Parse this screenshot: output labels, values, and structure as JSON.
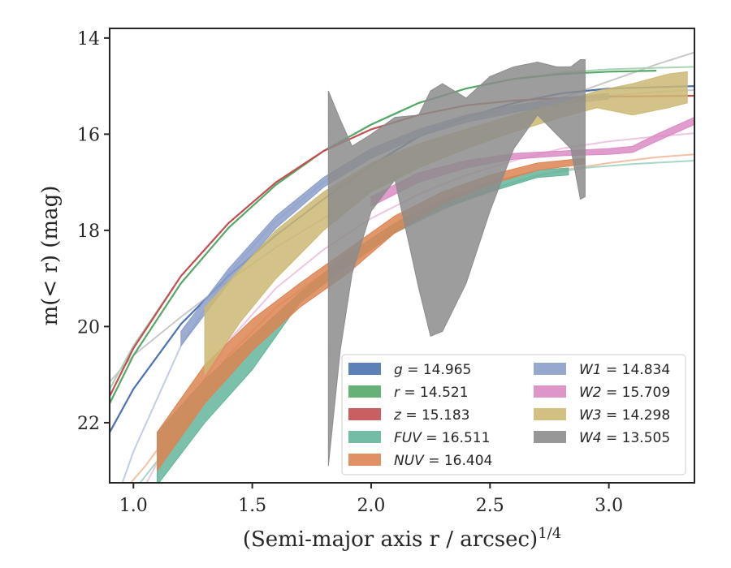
{
  "chart_data": {
    "type": "line",
    "title": "",
    "xlabel": "(Semi-major axis r / arcsec)",
    "xlabel_superscript": "1/4",
    "ylabel": "m(< r) (mag)",
    "xlim": [
      0.9,
      3.36
    ],
    "ylim": [
      23.25,
      13.8
    ],
    "y_inverted": true,
    "grid": false,
    "legend_position": "bottom-right",
    "x_ticks": [
      1.0,
      1.5,
      2.0,
      2.5,
      3.0
    ],
    "x_tick_labels": [
      "1.0",
      "1.5",
      "2.0",
      "2.5",
      "3.0"
    ],
    "y_ticks": [
      14,
      16,
      18,
      20,
      22
    ],
    "y_tick_labels": [
      "14",
      "16",
      "18",
      "20",
      "22"
    ],
    "series": [
      {
        "name": "g = 14.965",
        "band": "g",
        "total": "14.965",
        "color": "#4c72b0",
        "kind": "line",
        "x": [
          0.9,
          1.0,
          1.2,
          1.4,
          1.6,
          1.8,
          2.0,
          2.2,
          2.4,
          2.6,
          2.8,
          3.0,
          3.36
        ],
        "y": [
          22.2,
          21.3,
          19.95,
          18.95,
          18.1,
          17.35,
          16.65,
          16.05,
          15.65,
          15.35,
          15.15,
          15.05,
          15.0
        ]
      },
      {
        "name": "r = 14.521",
        "band": "r",
        "total": "14.521",
        "color": "#55a868",
        "kind": "line",
        "x": [
          0.9,
          1.0,
          1.2,
          1.4,
          1.6,
          1.8,
          2.0,
          2.2,
          2.4,
          2.6,
          2.8,
          3.0,
          3.2
        ],
        "y": [
          21.6,
          20.6,
          19.1,
          17.95,
          17.05,
          16.35,
          15.8,
          15.35,
          15.05,
          14.85,
          14.75,
          14.7,
          14.68
        ]
      },
      {
        "name": "z = 15.183",
        "band": "z",
        "total": "15.183",
        "color": "#c44e52",
        "kind": "line",
        "x": [
          0.9,
          1.0,
          1.2,
          1.4,
          1.6,
          1.8,
          2.0,
          2.2,
          2.4,
          2.6,
          2.8,
          3.0,
          3.36
        ],
        "y": [
          21.45,
          20.45,
          18.95,
          17.85,
          17.0,
          16.35,
          15.9,
          15.6,
          15.4,
          15.3,
          15.25,
          15.22,
          15.2
        ]
      },
      {
        "name": "FUV = 16.511",
        "band": "FUV",
        "total": "16.511",
        "color": "#64b59b",
        "kind": "band",
        "x": [
          1.1,
          1.3,
          1.5,
          1.7,
          1.9,
          2.1,
          2.3,
          2.5,
          2.7,
          2.83
        ],
        "y_low": [
          22.2,
          21.1,
          20.2,
          19.3,
          18.5,
          17.85,
          17.35,
          17.0,
          16.75,
          16.7
        ],
        "y_high": [
          23.3,
          22.0,
          20.9,
          19.5,
          18.75,
          18.05,
          17.55,
          17.2,
          16.9,
          16.85
        ]
      },
      {
        "name": "NUV = 16.404",
        "band": "NUV",
        "total": "16.404",
        "color": "#dd8452",
        "kind": "band",
        "x": [
          1.1,
          1.3,
          1.5,
          1.7,
          1.9,
          2.1,
          2.3,
          2.5,
          2.7,
          2.9
        ],
        "y_low": [
          22.2,
          20.8,
          19.85,
          19.1,
          18.4,
          17.7,
          17.2,
          16.85,
          16.6,
          16.5
        ],
        "y_high": [
          23.0,
          21.6,
          20.5,
          19.6,
          18.9,
          18.05,
          17.45,
          17.05,
          16.75,
          16.62
        ]
      },
      {
        "name": "W1 = 14.834",
        "band": "W1",
        "total": "14.834",
        "color": "#8c9fca",
        "kind": "band",
        "x": [
          1.2,
          1.4,
          1.6,
          1.8,
          2.0,
          2.2,
          2.4,
          2.6,
          2.8,
          3.0
        ],
        "y_low": [
          20.1,
          18.8,
          17.7,
          16.9,
          16.3,
          15.9,
          15.6,
          15.4,
          15.25,
          15.15
        ],
        "y_high": [
          20.4,
          19.1,
          17.95,
          17.1,
          16.5,
          16.05,
          15.75,
          15.55,
          15.38,
          15.27
        ]
      },
      {
        "name": "W2 = 15.709",
        "band": "W2",
        "total": "15.709",
        "color": "#da8bc3",
        "kind": "band",
        "x": [
          2.0,
          2.2,
          2.4,
          2.6,
          2.8,
          3.0,
          3.1,
          3.2,
          3.36
        ],
        "y_low": [
          17.3,
          16.8,
          16.55,
          16.4,
          16.35,
          16.3,
          16.25,
          16.0,
          15.65
        ],
        "y_high": [
          17.5,
          17.0,
          16.7,
          16.52,
          16.45,
          16.42,
          16.38,
          16.15,
          15.8
        ]
      },
      {
        "name": "W3 = 14.298",
        "band": "W3",
        "total": "14.298",
        "color": "#ccb974",
        "kind": "band",
        "x": [
          1.3,
          1.45,
          1.6,
          1.8,
          2.0,
          2.2,
          2.4,
          2.6,
          2.8,
          2.95,
          3.1,
          3.25,
          3.33
        ],
        "y_low": [
          19.6,
          18.8,
          18.0,
          17.2,
          16.6,
          16.2,
          15.9,
          15.6,
          15.35,
          15.1,
          14.95,
          14.75,
          14.7
        ],
        "y_high": [
          21.0,
          19.9,
          19.0,
          18.0,
          17.2,
          16.7,
          16.3,
          15.95,
          15.65,
          15.45,
          15.6,
          15.45,
          15.35
        ]
      },
      {
        "name": "W4 = 13.505",
        "band": "W4",
        "total": "13.505",
        "color": "#8c8c8c",
        "kind": "band",
        "x": [
          1.82,
          1.87,
          1.92,
          2.0,
          2.1,
          2.2,
          2.25,
          2.3,
          2.4,
          2.5,
          2.6,
          2.7,
          2.78,
          2.84,
          2.88,
          2.9
        ],
        "y_low": [
          15.1,
          15.7,
          16.25,
          16.0,
          15.65,
          15.6,
          15.1,
          14.95,
          15.25,
          14.8,
          14.6,
          14.5,
          14.6,
          14.6,
          14.45,
          14.45
        ],
        "y_high": [
          22.9,
          20.5,
          18.9,
          17.6,
          16.95,
          19.2,
          20.2,
          20.1,
          19.1,
          17.6,
          16.3,
          15.6,
          16.0,
          16.3,
          17.35,
          17.3
        ]
      }
    ],
    "model_curves": [
      {
        "band": "W4",
        "color": "#c8c8c8",
        "x": [
          0.9,
          1.0,
          1.2,
          1.4,
          1.6,
          1.8,
          2.0,
          2.2,
          2.4,
          2.6,
          2.8,
          3.0,
          3.2,
          3.36
        ],
        "y": [
          21.15,
          20.6,
          19.8,
          19.05,
          18.35,
          17.75,
          17.15,
          16.6,
          16.1,
          15.65,
          15.25,
          14.9,
          14.55,
          14.3
        ]
      },
      {
        "band": "W1",
        "color": "#c3cce6",
        "x": [
          0.95,
          1.0,
          1.2,
          1.4,
          1.6,
          1.8,
          2.0,
          2.2,
          2.4,
          2.6,
          2.8,
          3.0,
          3.2,
          3.36
        ],
        "y": [
          23.3,
          22.6,
          20.4,
          18.9,
          17.8,
          17.0,
          16.4,
          15.95,
          15.65,
          15.45,
          15.3,
          15.2,
          15.12,
          15.08
        ]
      },
      {
        "band": "W2",
        "color": "#efc6e1",
        "x": [
          1.05,
          1.2,
          1.4,
          1.6,
          1.8,
          2.0,
          2.2,
          2.4,
          2.6,
          2.8,
          3.0,
          3.2,
          3.36
        ],
        "y": [
          23.3,
          21.9,
          20.3,
          19.2,
          18.4,
          17.75,
          17.25,
          16.85,
          16.55,
          16.3,
          16.15,
          16.05,
          15.98
        ]
      },
      {
        "band": "NUV",
        "color": "#f1c1a4",
        "x": [
          0.98,
          1.05,
          1.2,
          1.4,
          1.6,
          1.8,
          2.0,
          2.2,
          2.4,
          2.6,
          2.8,
          3.0,
          3.2,
          3.36
        ],
        "y": [
          23.3,
          22.9,
          21.9,
          20.6,
          19.6,
          18.9,
          18.3,
          17.8,
          17.35,
          17.0,
          16.75,
          16.6,
          16.48,
          16.42
        ]
      },
      {
        "band": "FUV",
        "color": "#a6d8c6",
        "x": [
          1.02,
          1.1,
          1.3,
          1.5,
          1.7,
          1.9,
          2.1,
          2.3,
          2.5,
          2.7,
          2.9,
          3.1,
          3.36
        ],
        "y": [
          23.3,
          22.8,
          21.5,
          20.3,
          19.4,
          18.6,
          18.0,
          17.5,
          17.15,
          16.85,
          16.7,
          16.62,
          16.55
        ]
      },
      {
        "band": "r",
        "color": "#a9d4b3",
        "x": [
          0.9,
          1.0,
          1.2,
          1.4,
          1.6,
          1.8,
          2.0,
          2.2,
          2.4,
          2.6,
          2.8,
          3.0,
          3.2,
          3.36
        ],
        "y": [
          21.3,
          20.4,
          18.95,
          17.85,
          17.0,
          16.35,
          15.8,
          15.35,
          15.05,
          14.85,
          14.72,
          14.65,
          14.62,
          14.6
        ]
      }
    ],
    "legend": {
      "left": [
        {
          "prefix": "g",
          "value": "14.965",
          "color": "#4c72b0"
        },
        {
          "prefix": "r",
          "value": "14.521",
          "color": "#55a868"
        },
        {
          "prefix": "z",
          "value": "15.183",
          "color": "#c44e52"
        },
        {
          "prefix": "FUV",
          "value": "16.511",
          "color": "#64b59b"
        },
        {
          "prefix": "NUV",
          "value": "16.404",
          "color": "#dd8452"
        }
      ],
      "right": [
        {
          "prefix": "W1",
          "value": "14.834",
          "color": "#8c9fca"
        },
        {
          "prefix": "W2",
          "value": "15.709",
          "color": "#da8bc3"
        },
        {
          "prefix": "W3",
          "value": "14.298",
          "color": "#ccb974"
        },
        {
          "prefix": "W4",
          "value": "13.505",
          "color": "#8c8c8c"
        }
      ]
    }
  }
}
